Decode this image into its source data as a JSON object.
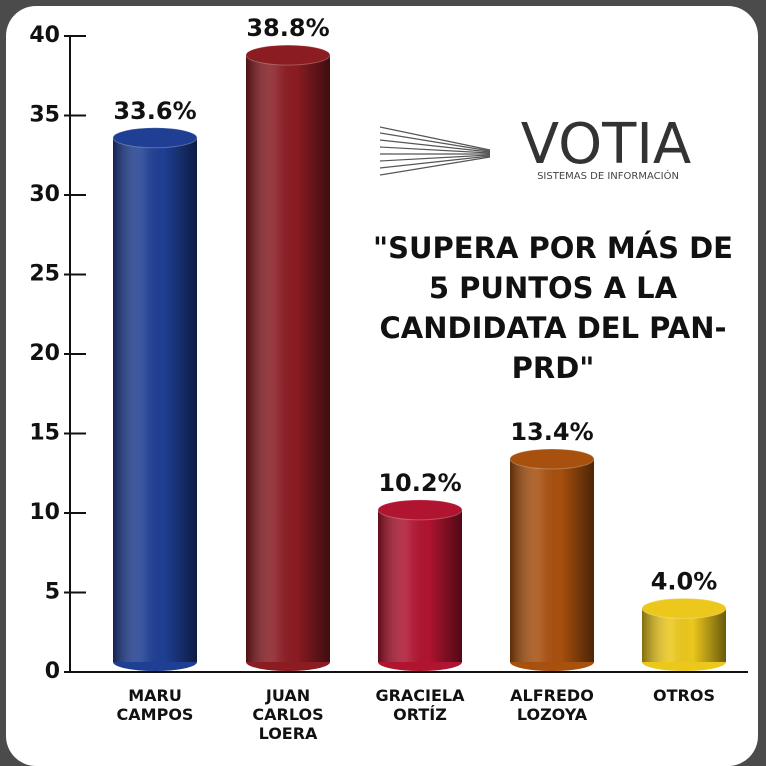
{
  "chart_data": {
    "type": "bar",
    "categories": [
      "MARU CAMPOS",
      "JUAN CARLOS LOERA",
      "GRACIELA ORTÍZ",
      "ALFREDO LOZOYA",
      "OTROS"
    ],
    "values": [
      33.6,
      38.8,
      10.2,
      13.4,
      4.0
    ],
    "value_labels": [
      "33.6%",
      "38.8%",
      "10.2%",
      "13.4%",
      "4.0%"
    ],
    "colors": [
      "#1f3f94",
      "#8a1c22",
      "#b01430",
      "#a8500e",
      "#ecc81c"
    ],
    "ylim": [
      0,
      40
    ],
    "yticks": [
      0,
      5,
      10,
      15,
      20,
      25,
      30,
      35,
      40
    ],
    "annotation": "\"SUPERA POR MÁS DE 5 PUNTOS A LA CANDIDATA DEL PAN-PRD\"",
    "logo": {
      "name": "VOTIA",
      "tagline": "SISTEMAS DE INFORMACIÓN"
    }
  }
}
